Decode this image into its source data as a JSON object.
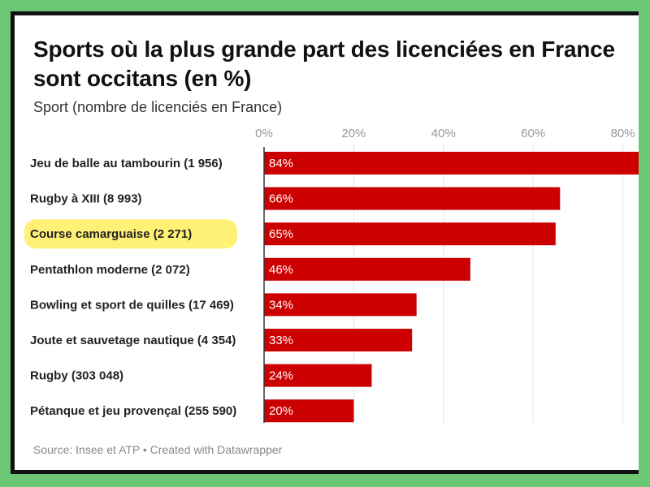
{
  "chart_data": {
    "type": "bar",
    "title": "Sports où la plus grande part des licenciées en France sont occitans (en %)",
    "subtitle": "Sport (nombre de licenciés en France)",
    "categories": [
      "Jeu de balle au tambourin (1 956)",
      "Rugby à XIII (8 993)",
      "Course camarguaise (2 271)",
      "Pentathlon moderne (2 072)",
      "Bowling et sport de quilles (17 469)",
      "Joute et sauvetage nautique (4 354)",
      "Rugby (303 048)",
      "Pétanque et jeu provençal (255 590)"
    ],
    "values": [
      84,
      66,
      65,
      46,
      34,
      33,
      24,
      20
    ],
    "value_labels": [
      "84%",
      "66%",
      "65%",
      "46%",
      "34%",
      "33%",
      "24%",
      "20%"
    ],
    "x_ticks": [
      "0%",
      "20%",
      "40%",
      "60%",
      "80%"
    ],
    "x_tick_values": [
      0,
      20,
      40,
      60,
      80
    ],
    "xlim": [
      0,
      82
    ],
    "highlighted_category": "Course camarguaise (2 271)",
    "bar_color": "#cc0000",
    "highlight_color": "#fff176",
    "grid": true,
    "source": "Source: Insee et ATP • Created with Datawrapper"
  }
}
